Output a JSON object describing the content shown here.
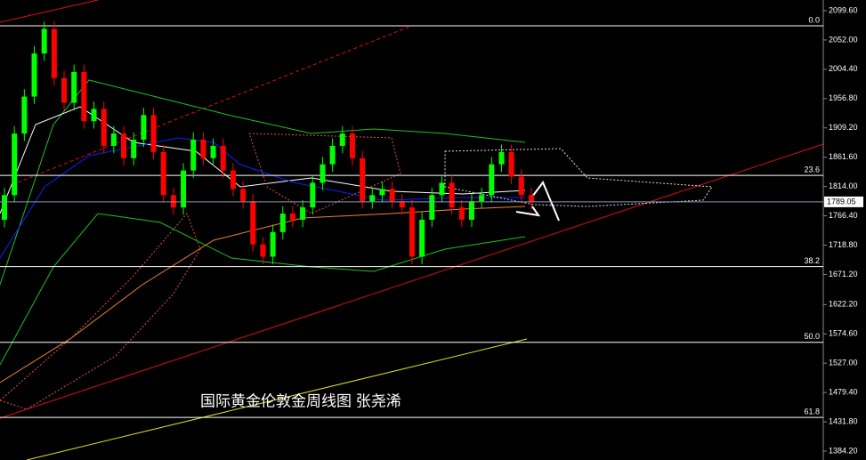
{
  "chart_data": {
    "type": "candlestick",
    "title": "国际黄金伦敦金周线图  张尧浠",
    "ylim": [
      1369.8,
      2116.9
    ],
    "yticks": [
      {
        "value": 2099.6,
        "label": "2099.60"
      },
      {
        "value": 2052,
        "label": "2052.00"
      },
      {
        "value": 2004.4,
        "label": "2004.40"
      },
      {
        "value": 1956.8,
        "label": "1956.80"
      },
      {
        "value": 1909.2,
        "label": "1909.20"
      },
      {
        "value": 1861.6,
        "label": "1861.60"
      },
      {
        "value": 1814,
        "label": "1814.00"
      },
      {
        "value": 1766.4,
        "label": "1766.40"
      },
      {
        "value": 1718.8,
        "label": "1718.80"
      },
      {
        "value": 1671.2,
        "label": "1671.20"
      },
      {
        "value": 1622.2,
        "label": "1622.20"
      },
      {
        "value": 1574.6,
        "label": "1574.60"
      },
      {
        "value": 1527,
        "label": "1527.00"
      },
      {
        "value": 1479.4,
        "label": "1479.40"
      },
      {
        "value": 1431.8,
        "label": "1431.80"
      },
      {
        "value": 1384.2,
        "label": "1384.20"
      }
    ],
    "last_price": 1789.05,
    "fib_levels": [
      {
        "label": "0.0",
        "value": 2075
      },
      {
        "label": "23.6",
        "value": 1832
      },
      {
        "label": "38.2",
        "value": 1684
      },
      {
        "label": "50.0",
        "value": 1561
      },
      {
        "label": "61.8",
        "value": 1439
      }
    ],
    "up_color": "#00ff00",
    "down_color": "#ff0000",
    "open": [
      1760,
      1800,
      1900,
      1960,
      2030,
      2070,
      1990,
      1950,
      2000,
      1920,
      1940,
      1880,
      1900,
      1860,
      1890,
      1930,
      1870,
      1800,
      1780,
      1840,
      1890,
      1860,
      1880,
      1840,
      1810,
      1790,
      1720,
      1700,
      1740,
      1770,
      1760,
      1780,
      1820,
      1850,
      1880,
      1900,
      1860,
      1790,
      1800,
      1810,
      1790,
      1780,
      1700,
      1760,
      1800,
      1820,
      1780,
      1760,
      1790,
      1800,
      1850,
      1870,
      1830,
      1800
    ],
    "high": [
      1812,
      1912,
      1972,
      2042,
      2082,
      2082,
      2002,
      2012,
      2012,
      1952,
      1952,
      1912,
      1912,
      1902,
      1942,
      1942,
      1882,
      1812,
      1852,
      1902,
      1902,
      1892,
      1892,
      1852,
      1822,
      1802,
      1732,
      1752,
      1782,
      1782,
      1792,
      1832,
      1862,
      1892,
      1912,
      1912,
      1872,
      1812,
      1822,
      1822,
      1802,
      1792,
      1772,
      1812,
      1832,
      1832,
      1792,
      1802,
      1812,
      1862,
      1882,
      1882,
      1842,
      1812
    ],
    "low": [
      1748,
      1788,
      1888,
      1948,
      2018,
      1978,
      1938,
      1938,
      1908,
      1908,
      1868,
      1868,
      1848,
      1848,
      1878,
      1858,
      1788,
      1768,
      1768,
      1828,
      1848,
      1848,
      1828,
      1798,
      1778,
      1708,
      1688,
      1688,
      1728,
      1748,
      1748,
      1768,
      1808,
      1838,
      1868,
      1848,
      1778,
      1778,
      1788,
      1778,
      1768,
      1688,
      1688,
      1748,
      1788,
      1768,
      1748,
      1748,
      1778,
      1788,
      1838,
      1818,
      1788,
      1777
    ],
    "close": [
      1800,
      1900,
      1960,
      2030,
      2070,
      1990,
      1950,
      2000,
      1920,
      1940,
      1880,
      1900,
      1860,
      1890,
      1930,
      1870,
      1800,
      1780,
      1840,
      1890,
      1860,
      1880,
      1840,
      1810,
      1790,
      1720,
      1700,
      1740,
      1770,
      1760,
      1780,
      1820,
      1850,
      1880,
      1900,
      1860,
      1790,
      1800,
      1810,
      1790,
      1780,
      1700,
      1760,
      1800,
      1820,
      1780,
      1760,
      1790,
      1800,
      1850,
      1870,
      1830,
      1800,
      1789.05
    ]
  }
}
